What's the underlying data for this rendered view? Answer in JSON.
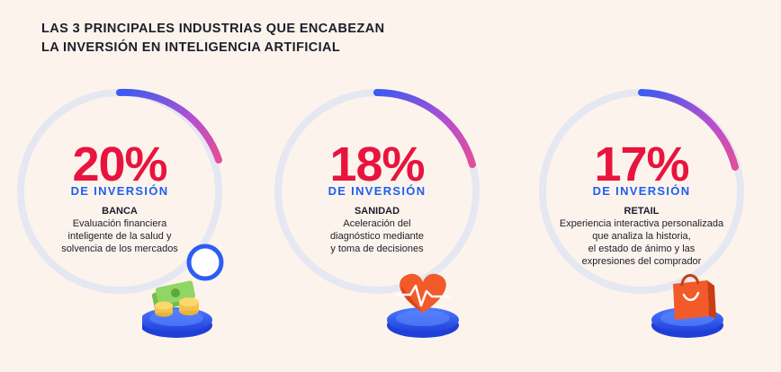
{
  "title": {
    "line1": "LAS 3 PRINCIPALES INDUSTRIAS QUE ENCABEZAN",
    "line2": "LA INVERSIÓN EN INTELIGENCIA ARTIFICIAL"
  },
  "colors": {
    "background": "#fcf4ec",
    "percent": "#e8143f",
    "label": "#1f5ef0",
    "ring_track": "#e5e7f2",
    "ring_gradient": [
      "#3b5bf0",
      "#b44fd0",
      "#e24e9a"
    ]
  },
  "cards": [
    {
      "percent": "20%",
      "label": "DE INVERSIÓN",
      "sector": "BANCA",
      "description": [
        "Evaluación financiera",
        "inteligente de la salud y",
        "solvencia de los mercados"
      ],
      "icon": "money-coins-icon"
    },
    {
      "percent": "18%",
      "label": "DE INVERSIÓN",
      "sector": "SANIDAD",
      "description": [
        "Aceleración del",
        "diagnóstico mediante",
        "y toma de decisiones"
      ],
      "icon": "heart-pulse-icon"
    },
    {
      "percent": "17%",
      "label": "DE INVERSIÓN",
      "sector": "RETAIL",
      "description": [
        "Experiencia interactiva  personalizada",
        "que analiza la historia,",
        "el estado de ánimo y las",
        "expresiones del comprador"
      ],
      "icon": "shopping-bag-icon"
    }
  ]
}
